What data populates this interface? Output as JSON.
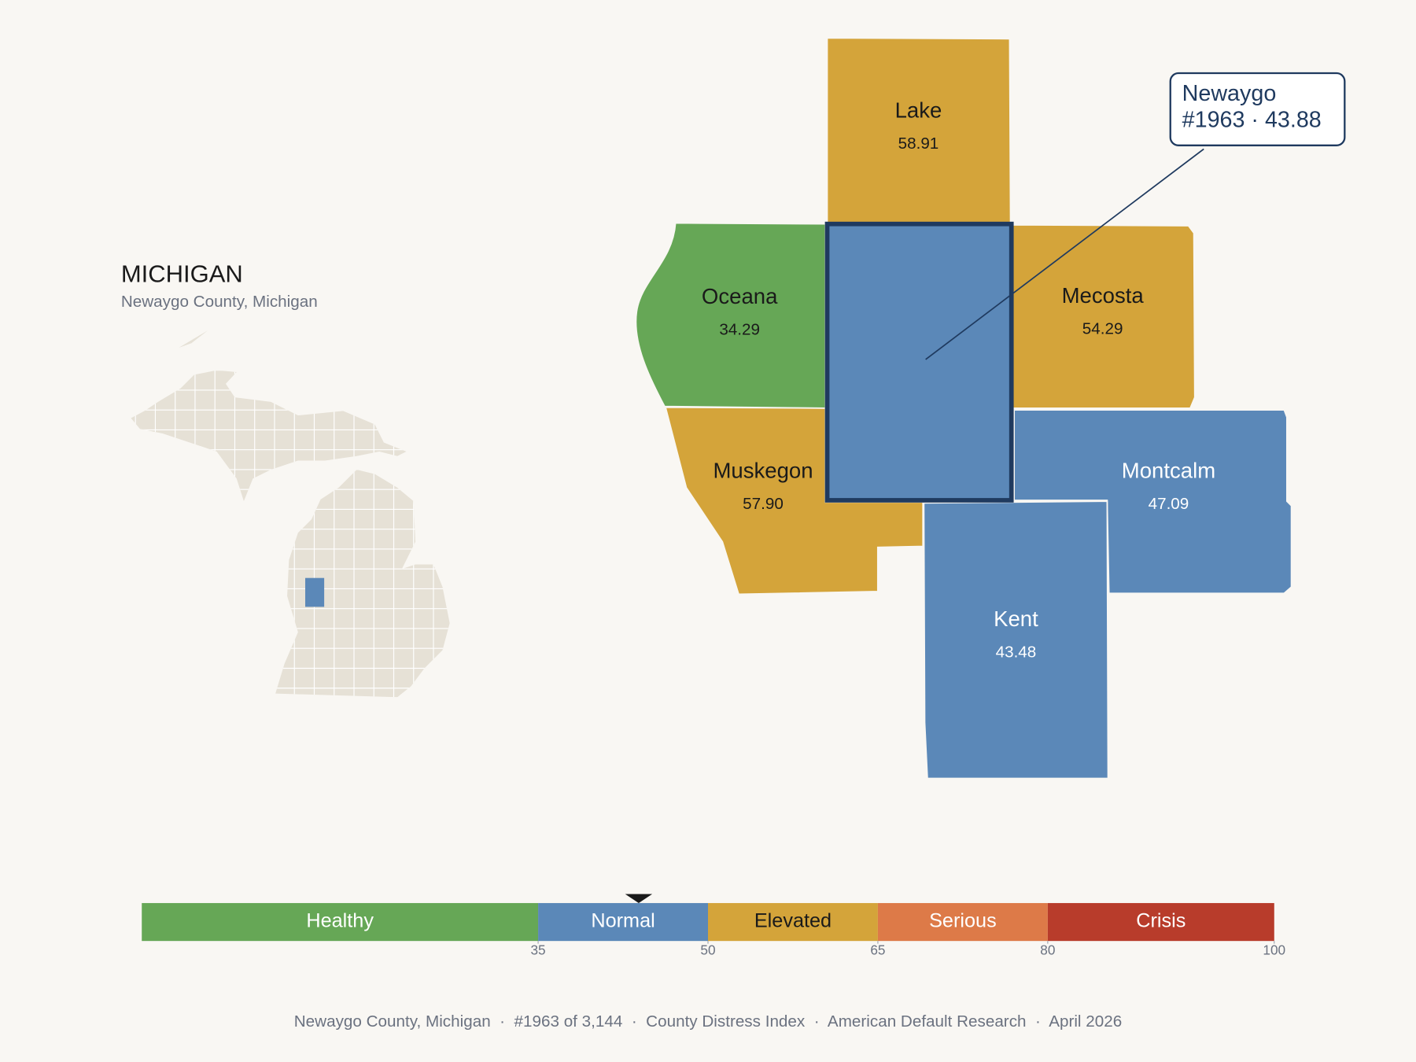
{
  "header": {
    "title": "MICHIGAN",
    "subtitle": "Newaygo County, Michigan"
  },
  "map": {
    "names": [
      "Lake",
      "Oceana",
      "Mecosta",
      "Muskegon",
      "Montcalm",
      "Kent"
    ],
    "values": [
      58.91,
      34.29,
      54.29,
      57.9,
      47.09,
      43.48
    ],
    "value_labels": [
      "58.91",
      "34.29",
      "54.29",
      "57.90",
      "47.09",
      "43.48"
    ],
    "colors": [
      "#d4a43a",
      "#66a756",
      "#d4a43a",
      "#d4a43a",
      "#5b88b8",
      "#5b88b8"
    ]
  },
  "callout": {
    "lines": [
      "Newaygo",
      "#1963 · 43.88"
    ],
    "value": 43.88,
    "color": "#5b88b8"
  },
  "scale": {
    "xlim": [
      0,
      100
    ],
    "segments": [
      {
        "label": "Healthy",
        "from": 0,
        "to": 35,
        "color": "#66a756"
      },
      {
        "label": "Normal",
        "from": 35,
        "to": 50,
        "color": "#5b88b8"
      },
      {
        "label": "Elevated",
        "from": 50,
        "to": 65,
        "color": "#d4a43a"
      },
      {
        "label": "Serious",
        "from": 65,
        "to": 80,
        "color": "#dd7a48"
      },
      {
        "label": "Crisis",
        "from": 80,
        "to": 100,
        "color": "#b83c2b"
      }
    ],
    "ticks": [
      35,
      50,
      65,
      80,
      100
    ]
  },
  "footer": "Newaygo County, Michigan  ·  #1963 of 3,144  ·  County Distress Index  ·  American Default Research  ·  April 2026"
}
